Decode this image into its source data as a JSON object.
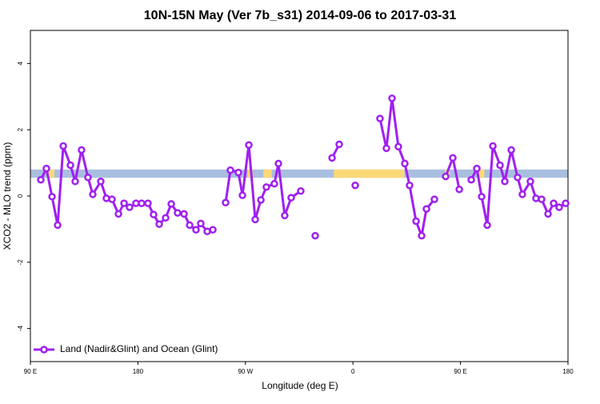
{
  "chart_data": {
    "type": "line",
    "title": "10N-15N May (Ver 7b_s31)   2014-09-06 to 2017-03-31",
    "x_label": "Longitude (deg E)",
    "y_label": "XCO2 - MLO trend (ppm)",
    "xlim": [
      90,
      540
    ],
    "ylim": [
      -5,
      5
    ],
    "xticks": [
      {
        "value": 90,
        "label": "90 E"
      },
      180,
      {
        "value": 270,
        "label": "90 W"
      },
      {
        "value": 360,
        "label": "0"
      },
      {
        "value": 450,
        "label": "90 E"
      },
      {
        "value": 540,
        "label": "180"
      }
    ],
    "yticks": [
      -4,
      -2,
      0,
      2,
      4
    ],
    "legend": "bottom-left",
    "band": {
      "ylim": [
        0.55,
        0.8
      ],
      "color": "#a9bfe0",
      "highlight_color": "#fbd877",
      "highlights": [
        [
          105,
          110
        ],
        [
          272,
          276
        ],
        [
          285,
          292
        ],
        [
          344,
          403
        ],
        [
          437,
          441
        ],
        [
          465,
          470
        ]
      ]
    },
    "x": [
      98.7,
      103.4,
      108.1,
      112.8,
      117.5,
      123.5,
      127.5,
      132.8,
      138.2,
      142.2,
      148.9,
      153.6,
      158.3,
      163.7,
      168.4,
      173.0,
      178.4,
      183.1,
      188.4,
      193.1,
      197.8,
      203.2,
      207.9,
      213.2,
      218.6,
      223.3,
      228.6,
      232.6,
      238.0,
      242.7,
      null,
      253.4,
      257.4,
      264.1,
      267.5,
      272.8,
      278.2,
      282.9,
      287.5,
      294.2,
      297.6,
      302.9,
      308.3,
      316.3,
      null,
      328.4,
      null,
      342.5,
      348.5,
      null,
      361.9,
      null,
      382.6,
      388.0,
      392.7,
      398.0,
      403.4,
      407.4,
      412.8,
      417.5,
      421.5,
      428.2,
      null,
      437.6,
      443.6,
      449.0,
      null,
      459.0,
      463.7,
      467.7,
      472.4,
      477.1,
      483.1,
      487.1,
      492.5,
      497.8,
      501.8,
      508.5,
      513.2,
      517.9,
      523.3,
      528.0,
      532.6,
      538.0
    ],
    "series": [
      {
        "name": "Land (Nadir&Glint) and Ocean (Glint)",
        "color": "#a020f0",
        "values": [
          0.49,
          0.83,
          -0.02,
          -0.88,
          1.51,
          0.93,
          0.44,
          1.39,
          0.56,
          0.05,
          0.44,
          -0.07,
          -0.1,
          -0.54,
          -0.22,
          -0.34,
          -0.22,
          -0.22,
          -0.22,
          -0.56,
          -0.85,
          -0.66,
          -0.24,
          -0.51,
          -0.54,
          -0.88,
          -1.02,
          -0.83,
          -1.07,
          -1.02,
          null,
          -0.2,
          0.78,
          0.71,
          0.02,
          1.54,
          -0.71,
          -0.12,
          0.27,
          0.37,
          0.98,
          -0.59,
          -0.05,
          0.15,
          null,
          -1.2,
          null,
          1.15,
          1.56,
          null,
          0.32,
          null,
          2.34,
          1.44,
          2.95,
          1.49,
          0.98,
          0.32,
          -0.76,
          -1.2,
          -0.39,
          -0.1,
          null,
          0.59,
          1.15,
          0.2,
          null,
          0.49,
          0.83,
          -0.02,
          -0.88,
          1.51,
          0.93,
          0.44,
          1.39,
          0.56,
          0.05,
          0.44,
          -0.07,
          -0.1,
          -0.54,
          -0.22,
          -0.34,
          -0.22
        ]
      }
    ]
  }
}
